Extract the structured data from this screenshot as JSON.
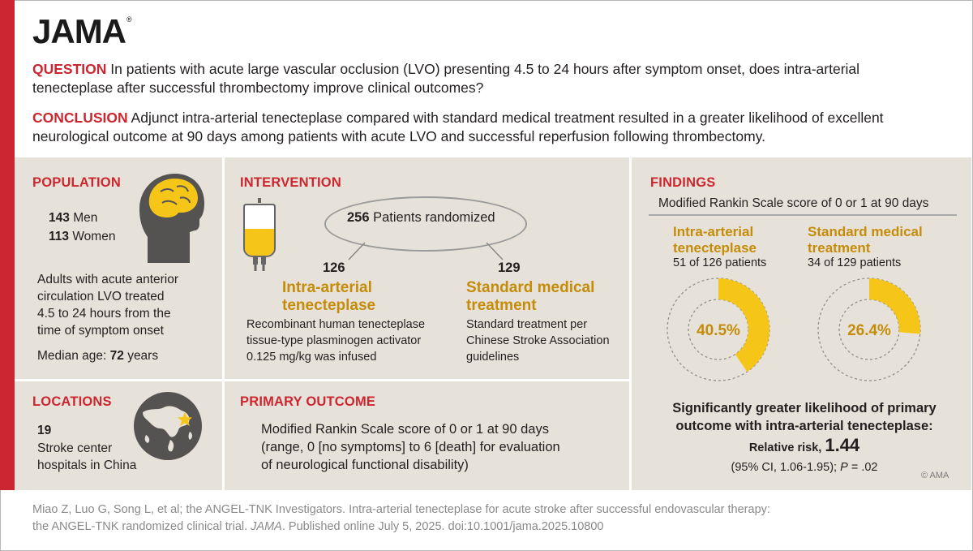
{
  "logo": "JAMA",
  "question": {
    "label": "QUESTION",
    "text": "In patients with acute large vascular occlusion (LVO) presenting 4.5 to 24 hours after symptom onset, does intra-arterial tenecteplase after successful thrombectomy improve clinical outcomes?"
  },
  "conclusion": {
    "label": "CONCLUSION",
    "text": "Adjunct intra-arterial tenecteplase compared with standard medical treatment resulted in a greater likelihood of excellent neurological outcome at 90 days among patients with acute LVO and successful reperfusion following thrombectomy."
  },
  "population": {
    "title": "POPULATION",
    "men_count": "143",
    "men_label": "Men",
    "women_count": "113",
    "women_label": "Women",
    "description_lines": [
      "Adults with acute anterior",
      "circulation LVO treated",
      "4.5 to 24 hours from the",
      "time of symptom onset"
    ],
    "median_label": "Median age:",
    "median_value": "72",
    "median_unit": "years"
  },
  "locations": {
    "title": "LOCATIONS",
    "count": "19",
    "lines": [
      "Stroke center",
      "hospitals in China"
    ]
  },
  "intervention": {
    "title": "INTERVENTION",
    "randomized_count": "256",
    "randomized_label": "Patients randomized",
    "arm1": {
      "count": "126",
      "name_lines": [
        "Intra-arterial",
        "tenecteplase"
      ],
      "desc_lines": [
        "Recombinant human tenecteplase",
        "tissue-type plasminogen activator",
        "0.125 mg/kg was infused"
      ]
    },
    "arm2": {
      "count": "129",
      "name_lines": [
        "Standard medical",
        "treatment"
      ],
      "desc_lines": [
        "Standard treatment per",
        "Chinese Stroke Association",
        "guidelines"
      ]
    }
  },
  "primary_outcome": {
    "title": "PRIMARY OUTCOME",
    "lines": [
      "Modified Rankin Scale score of 0 or 1 at 90 days",
      "(range, 0 [no symptoms] to 6 [death] for evaluation",
      "of neurological functional disability)"
    ]
  },
  "findings": {
    "title": "FINDINGS",
    "subtitle": "Modified Rankin Scale score of 0 or 1 at 90 days",
    "arms": [
      {
        "name_lines": [
          "Intra-arterial",
          "tenecteplase"
        ],
        "detail": "51 of 126 patients",
        "percent_label": "40.5%",
        "fraction": 0.405
      },
      {
        "name_lines": [
          "Standard medical",
          "treatment"
        ],
        "detail": "34 of 129 patients",
        "percent_label": "26.4%",
        "fraction": 0.264
      }
    ],
    "summary_lines": [
      "Significantly greater likelihood of primary",
      "outcome with intra-arterial tenecteplase:"
    ],
    "rr_label": "Relative risk,",
    "rr_value": "1.44",
    "ci_text": "(95% CI, 1.06-1.95);",
    "p_label": "P",
    "p_value": "= .02"
  },
  "copyright": "© AMA",
  "citation": {
    "line1": "Miao Z, Luo G, Song L, et al; the ANGEL-TNK Investigators. Intra-arterial tenecteplase for acute stroke after successful endovascular therapy:",
    "line2_pre": "the ANGEL-TNK randomized clinical trial.",
    "journal": "JAMA",
    "line2_post": ". Published online July 5, 2025. doi:10.1001/jama.2025.10800"
  },
  "colors": {
    "red": "#cc2630",
    "gold": "#c58c0a",
    "donut_fill": "#f5c518",
    "panel_bg": "#e7e2d9"
  }
}
